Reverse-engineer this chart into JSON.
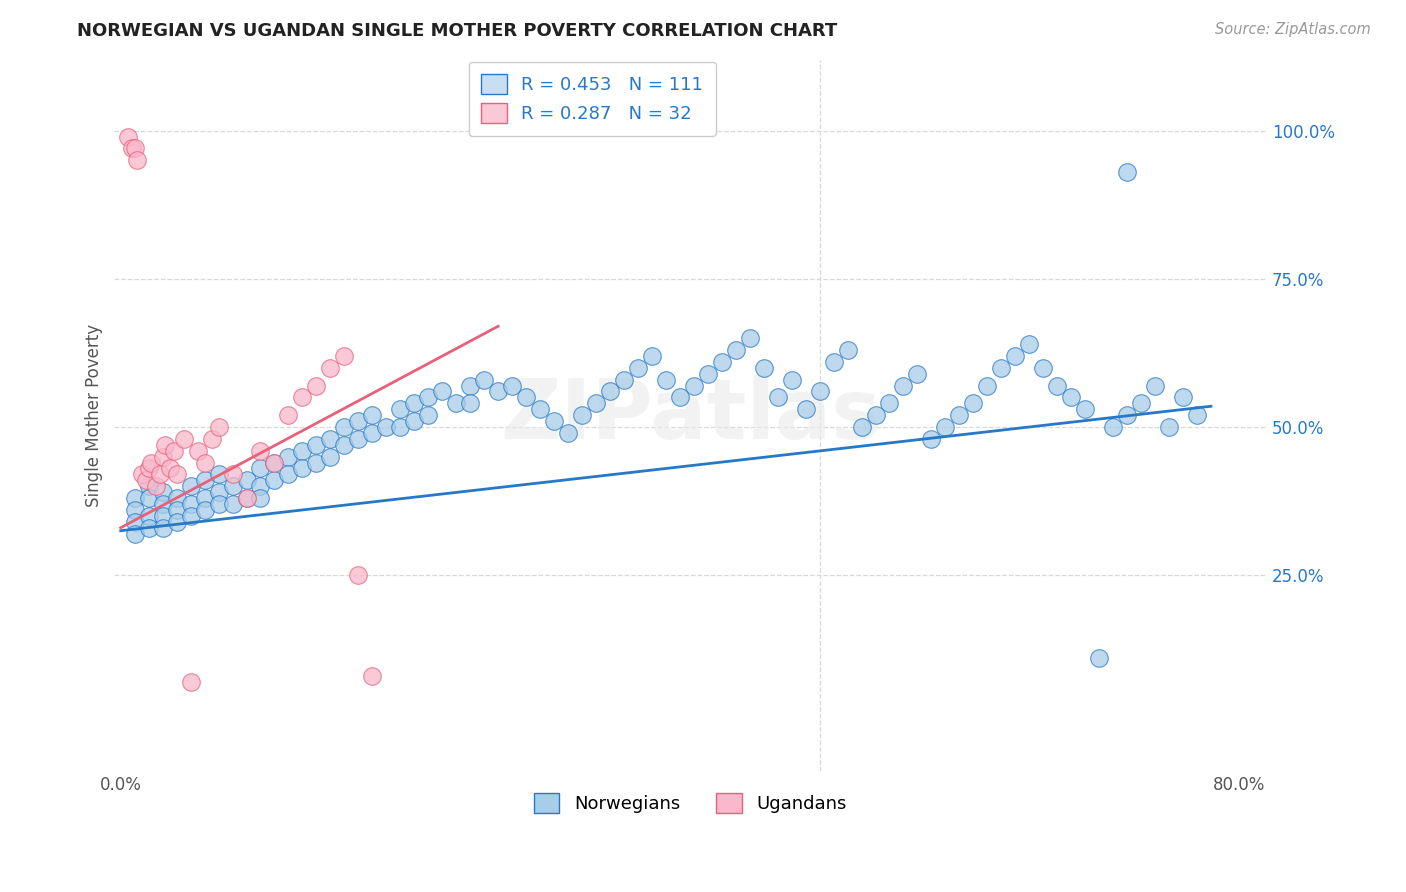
{
  "title": "NORWEGIAN VS UGANDAN SINGLE MOTHER POVERTY CORRELATION CHART",
  "source": "Source: ZipAtlas.com",
  "ylabel": "Single Mother Poverty",
  "xlim": [
    -0.005,
    0.82
  ],
  "ylim": [
    -0.08,
    1.12
  ],
  "ytick_positions": [
    0.0,
    0.25,
    0.5,
    0.75,
    1.0
  ],
  "ytick_labels": [
    "",
    "25.0%",
    "50.0%",
    "75.0%",
    "100.0%"
  ],
  "xtick_positions": [
    0.0,
    0.1,
    0.2,
    0.3,
    0.4,
    0.5,
    0.6,
    0.7,
    0.8
  ],
  "xtick_labels": [
    "0.0%",
    "",
    "",
    "",
    "",
    "",
    "",
    "",
    "80.0%"
  ],
  "r_norwegian": 0.453,
  "n_norwegian": 111,
  "r_ugandan": 0.287,
  "n_ugandan": 32,
  "norwegian_color": "#a8cde8",
  "ugandan_color": "#f9b8cb",
  "norwegian_line_color": "#2878c8",
  "ugandan_line_color": "#e8607a",
  "background_color": "#ffffff",
  "watermark": "ZIPatlas",
  "grid_color": "#d8d8d8",
  "nor_line_x0": 0.0,
  "nor_line_x1": 0.78,
  "nor_line_y0": 0.325,
  "nor_line_y1": 0.535,
  "uga_line_x0": 0.0,
  "uga_line_x1": 0.27,
  "uga_line_y0": 0.33,
  "uga_line_y1": 0.67,
  "nor_scatter_x": [
    0.01,
    0.01,
    0.01,
    0.01,
    0.02,
    0.02,
    0.02,
    0.02,
    0.03,
    0.03,
    0.03,
    0.03,
    0.04,
    0.04,
    0.04,
    0.05,
    0.05,
    0.05,
    0.06,
    0.06,
    0.06,
    0.07,
    0.07,
    0.07,
    0.08,
    0.08,
    0.09,
    0.09,
    0.1,
    0.1,
    0.1,
    0.11,
    0.11,
    0.12,
    0.12,
    0.13,
    0.13,
    0.14,
    0.14,
    0.15,
    0.15,
    0.16,
    0.16,
    0.17,
    0.17,
    0.18,
    0.18,
    0.19,
    0.2,
    0.2,
    0.21,
    0.21,
    0.22,
    0.22,
    0.23,
    0.24,
    0.25,
    0.25,
    0.26,
    0.27,
    0.28,
    0.29,
    0.3,
    0.31,
    0.32,
    0.33,
    0.34,
    0.35,
    0.36,
    0.37,
    0.38,
    0.39,
    0.4,
    0.41,
    0.42,
    0.43,
    0.44,
    0.45,
    0.46,
    0.47,
    0.48,
    0.49,
    0.5,
    0.51,
    0.52,
    0.53,
    0.54,
    0.55,
    0.56,
    0.57,
    0.58,
    0.59,
    0.6,
    0.61,
    0.62,
    0.63,
    0.64,
    0.65,
    0.66,
    0.67,
    0.68,
    0.69,
    0.7,
    0.71,
    0.72,
    0.72,
    0.73,
    0.74,
    0.75,
    0.76,
    0.77
  ],
  "nor_scatter_y": [
    0.38,
    0.36,
    0.34,
    0.32,
    0.4,
    0.38,
    0.35,
    0.33,
    0.39,
    0.37,
    0.35,
    0.33,
    0.38,
    0.36,
    0.34,
    0.4,
    0.37,
    0.35,
    0.41,
    0.38,
    0.36,
    0.42,
    0.39,
    0.37,
    0.4,
    0.37,
    0.41,
    0.38,
    0.43,
    0.4,
    0.38,
    0.44,
    0.41,
    0.45,
    0.42,
    0.46,
    0.43,
    0.47,
    0.44,
    0.48,
    0.45,
    0.5,
    0.47,
    0.51,
    0.48,
    0.52,
    0.49,
    0.5,
    0.53,
    0.5,
    0.54,
    0.51,
    0.55,
    0.52,
    0.56,
    0.54,
    0.57,
    0.54,
    0.58,
    0.56,
    0.57,
    0.55,
    0.53,
    0.51,
    0.49,
    0.52,
    0.54,
    0.56,
    0.58,
    0.6,
    0.62,
    0.58,
    0.55,
    0.57,
    0.59,
    0.61,
    0.63,
    0.65,
    0.6,
    0.55,
    0.58,
    0.53,
    0.56,
    0.61,
    0.63,
    0.5,
    0.52,
    0.54,
    0.57,
    0.59,
    0.48,
    0.5,
    0.52,
    0.54,
    0.57,
    0.6,
    0.62,
    0.64,
    0.6,
    0.57,
    0.55,
    0.53,
    0.11,
    0.5,
    0.93,
    0.52,
    0.54,
    0.57,
    0.5,
    0.55,
    0.52
  ],
  "uga_scatter_x": [
    0.005,
    0.008,
    0.01,
    0.012,
    0.015,
    0.018,
    0.02,
    0.022,
    0.025,
    0.028,
    0.03,
    0.032,
    0.035,
    0.038,
    0.04,
    0.045,
    0.05,
    0.055,
    0.06,
    0.065,
    0.07,
    0.08,
    0.09,
    0.1,
    0.11,
    0.12,
    0.13,
    0.14,
    0.15,
    0.16,
    0.17,
    0.18
  ],
  "uga_scatter_y": [
    0.99,
    0.97,
    0.97,
    0.95,
    0.42,
    0.41,
    0.43,
    0.44,
    0.4,
    0.42,
    0.45,
    0.47,
    0.43,
    0.46,
    0.42,
    0.48,
    0.07,
    0.46,
    0.44,
    0.48,
    0.5,
    0.42,
    0.38,
    0.46,
    0.44,
    0.52,
    0.55,
    0.57,
    0.6,
    0.62,
    0.25,
    0.08
  ]
}
